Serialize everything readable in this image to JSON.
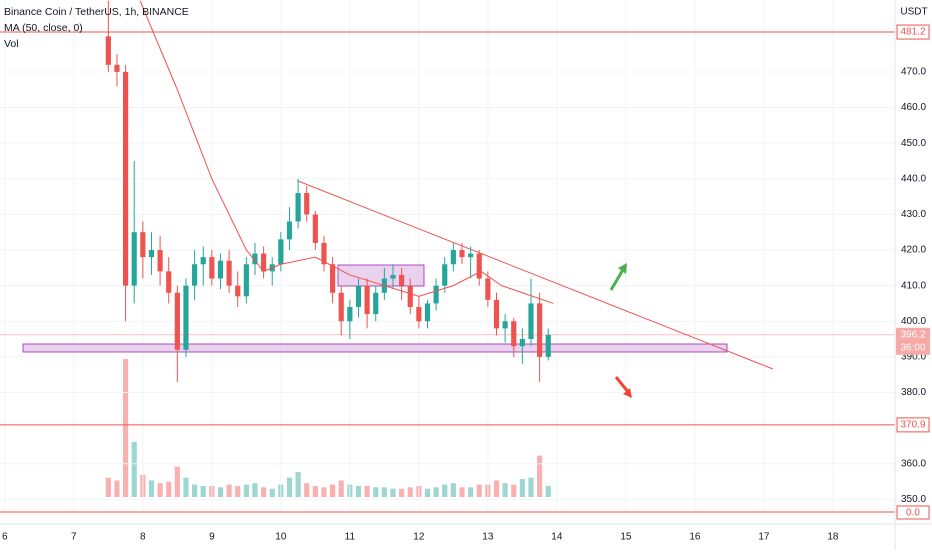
{
  "chart_data": {
    "type": "candlestick",
    "title": "Binance Coin / TetherUS, 1h, BINANCE",
    "indicator_label": "MA (50, close, 0)",
    "volume_label": "Vol",
    "currency_label": "USDT",
    "up_color": "#26a69a",
    "down_color": "#ef5350",
    "ma_color": "#f0524f",
    "xlim": [
      5.93,
      18.9
    ],
    "xticks": [
      6,
      7,
      8,
      9,
      10,
      11,
      12,
      13,
      14,
      15,
      16,
      17,
      18
    ],
    "ylim": [
      347,
      490.2
    ],
    "yticks": [
      {
        "value": 350,
        "label": "350.0"
      },
      {
        "value": 360,
        "label": "360.0"
      },
      {
        "value": 380,
        "label": "380.0"
      },
      {
        "value": 390,
        "label": "390.0"
      },
      {
        "value": 400,
        "label": "400.0"
      },
      {
        "value": 410,
        "label": "410.0"
      },
      {
        "value": 420,
        "label": "420.0"
      },
      {
        "value": 430,
        "label": "430.0"
      },
      {
        "value": 440,
        "label": "440.0"
      },
      {
        "value": 450,
        "label": "450.0"
      },
      {
        "value": 460,
        "label": "460.0"
      },
      {
        "value": 470,
        "label": "470.0"
      }
    ],
    "price_lines": [
      481.2,
      370.9
    ],
    "last_price": 396.2,
    "countdown": "36:00",
    "zero_line_label": "0.0",
    "x": [
      7.5,
      7.625,
      7.75,
      7.875,
      8.0,
      8.125,
      8.25,
      8.375,
      8.5,
      8.625,
      8.75,
      8.875,
      9.0,
      9.125,
      9.25,
      9.375,
      9.5,
      9.625,
      9.75,
      9.875,
      10.0,
      10.125,
      10.25,
      10.375,
      10.5,
      10.625,
      10.75,
      10.875,
      11.0,
      11.125,
      11.25,
      11.375,
      11.5,
      11.625,
      11.75,
      11.875,
      12.0,
      12.125,
      12.25,
      12.375,
      12.5,
      12.625,
      12.75,
      12.875,
      13.0,
      13.125,
      13.25,
      13.375,
      13.5,
      13.625,
      13.75,
      13.875
    ],
    "open": [
      480,
      472,
      470,
      410,
      425,
      418,
      420,
      414,
      408,
      392,
      410,
      416,
      418,
      412,
      417,
      410,
      407,
      416,
      419,
      414,
      416,
      423,
      428,
      436,
      430,
      422,
      416,
      408,
      400,
      404,
      410,
      402,
      408,
      412,
      413,
      410,
      404,
      400,
      405,
      410,
      416,
      420,
      418,
      419,
      412,
      406,
      398,
      400,
      393,
      395,
      405,
      390
    ],
    "high": [
      490,
      475,
      472,
      445,
      428,
      425,
      424,
      418,
      410,
      412,
      420,
      421,
      420,
      419,
      420,
      414,
      418,
      422,
      421,
      418,
      425,
      432,
      440,
      438,
      431,
      424,
      418,
      410,
      406,
      412,
      412,
      410,
      415,
      416,
      415,
      412,
      407,
      406,
      412,
      418,
      422,
      422,
      421,
      420,
      414,
      408,
      402,
      401,
      398,
      412,
      408,
      398
    ],
    "low": [
      470,
      466,
      400,
      405,
      412,
      413,
      410,
      405,
      383,
      390,
      406,
      410,
      410,
      409,
      408,
      404,
      405,
      413,
      412,
      410,
      414,
      420,
      426,
      428,
      420,
      414,
      405,
      396,
      395,
      401,
      398,
      400,
      406,
      409,
      406,
      402,
      398,
      398,
      403,
      408,
      414,
      416,
      412,
      410,
      404,
      396,
      394,
      390,
      388,
      393,
      383,
      389
    ],
    "close": [
      472,
      470,
      410,
      425,
      418,
      420,
      414,
      408,
      392,
      410,
      416,
      418,
      412,
      417,
      410,
      407,
      416,
      419,
      414,
      416,
      423,
      428,
      436,
      430,
      422,
      416,
      408,
      400,
      404,
      410,
      402,
      408,
      412,
      413,
      410,
      404,
      400,
      405,
      410,
      416,
      420,
      418,
      419,
      412,
      406,
      398,
      400,
      393,
      395,
      405,
      390,
      396.2
    ],
    "volume": [
      14,
      12,
      100,
      40,
      16,
      12,
      10,
      11,
      22,
      14,
      9,
      8,
      8,
      7,
      9,
      8,
      9,
      10,
      7,
      6,
      9,
      14,
      18,
      10,
      8,
      7,
      9,
      12,
      9,
      8,
      8,
      7,
      7,
      6,
      6,
      7,
      8,
      6,
      7,
      9,
      10,
      7,
      7,
      9,
      9,
      12,
      10,
      9,
      13,
      14,
      30,
      8
    ],
    "ma": {
      "x": [
        7.96,
        8.5,
        9.0,
        9.5,
        9.75,
        10.0,
        10.5,
        11.0,
        11.5,
        12.0,
        12.5,
        12.9,
        13.2,
        13.5,
        13.95
      ],
      "values": [
        490,
        465,
        440,
        420,
        414,
        416,
        418,
        413,
        410,
        407,
        410,
        414,
        410,
        408,
        405
      ]
    }
  }
}
